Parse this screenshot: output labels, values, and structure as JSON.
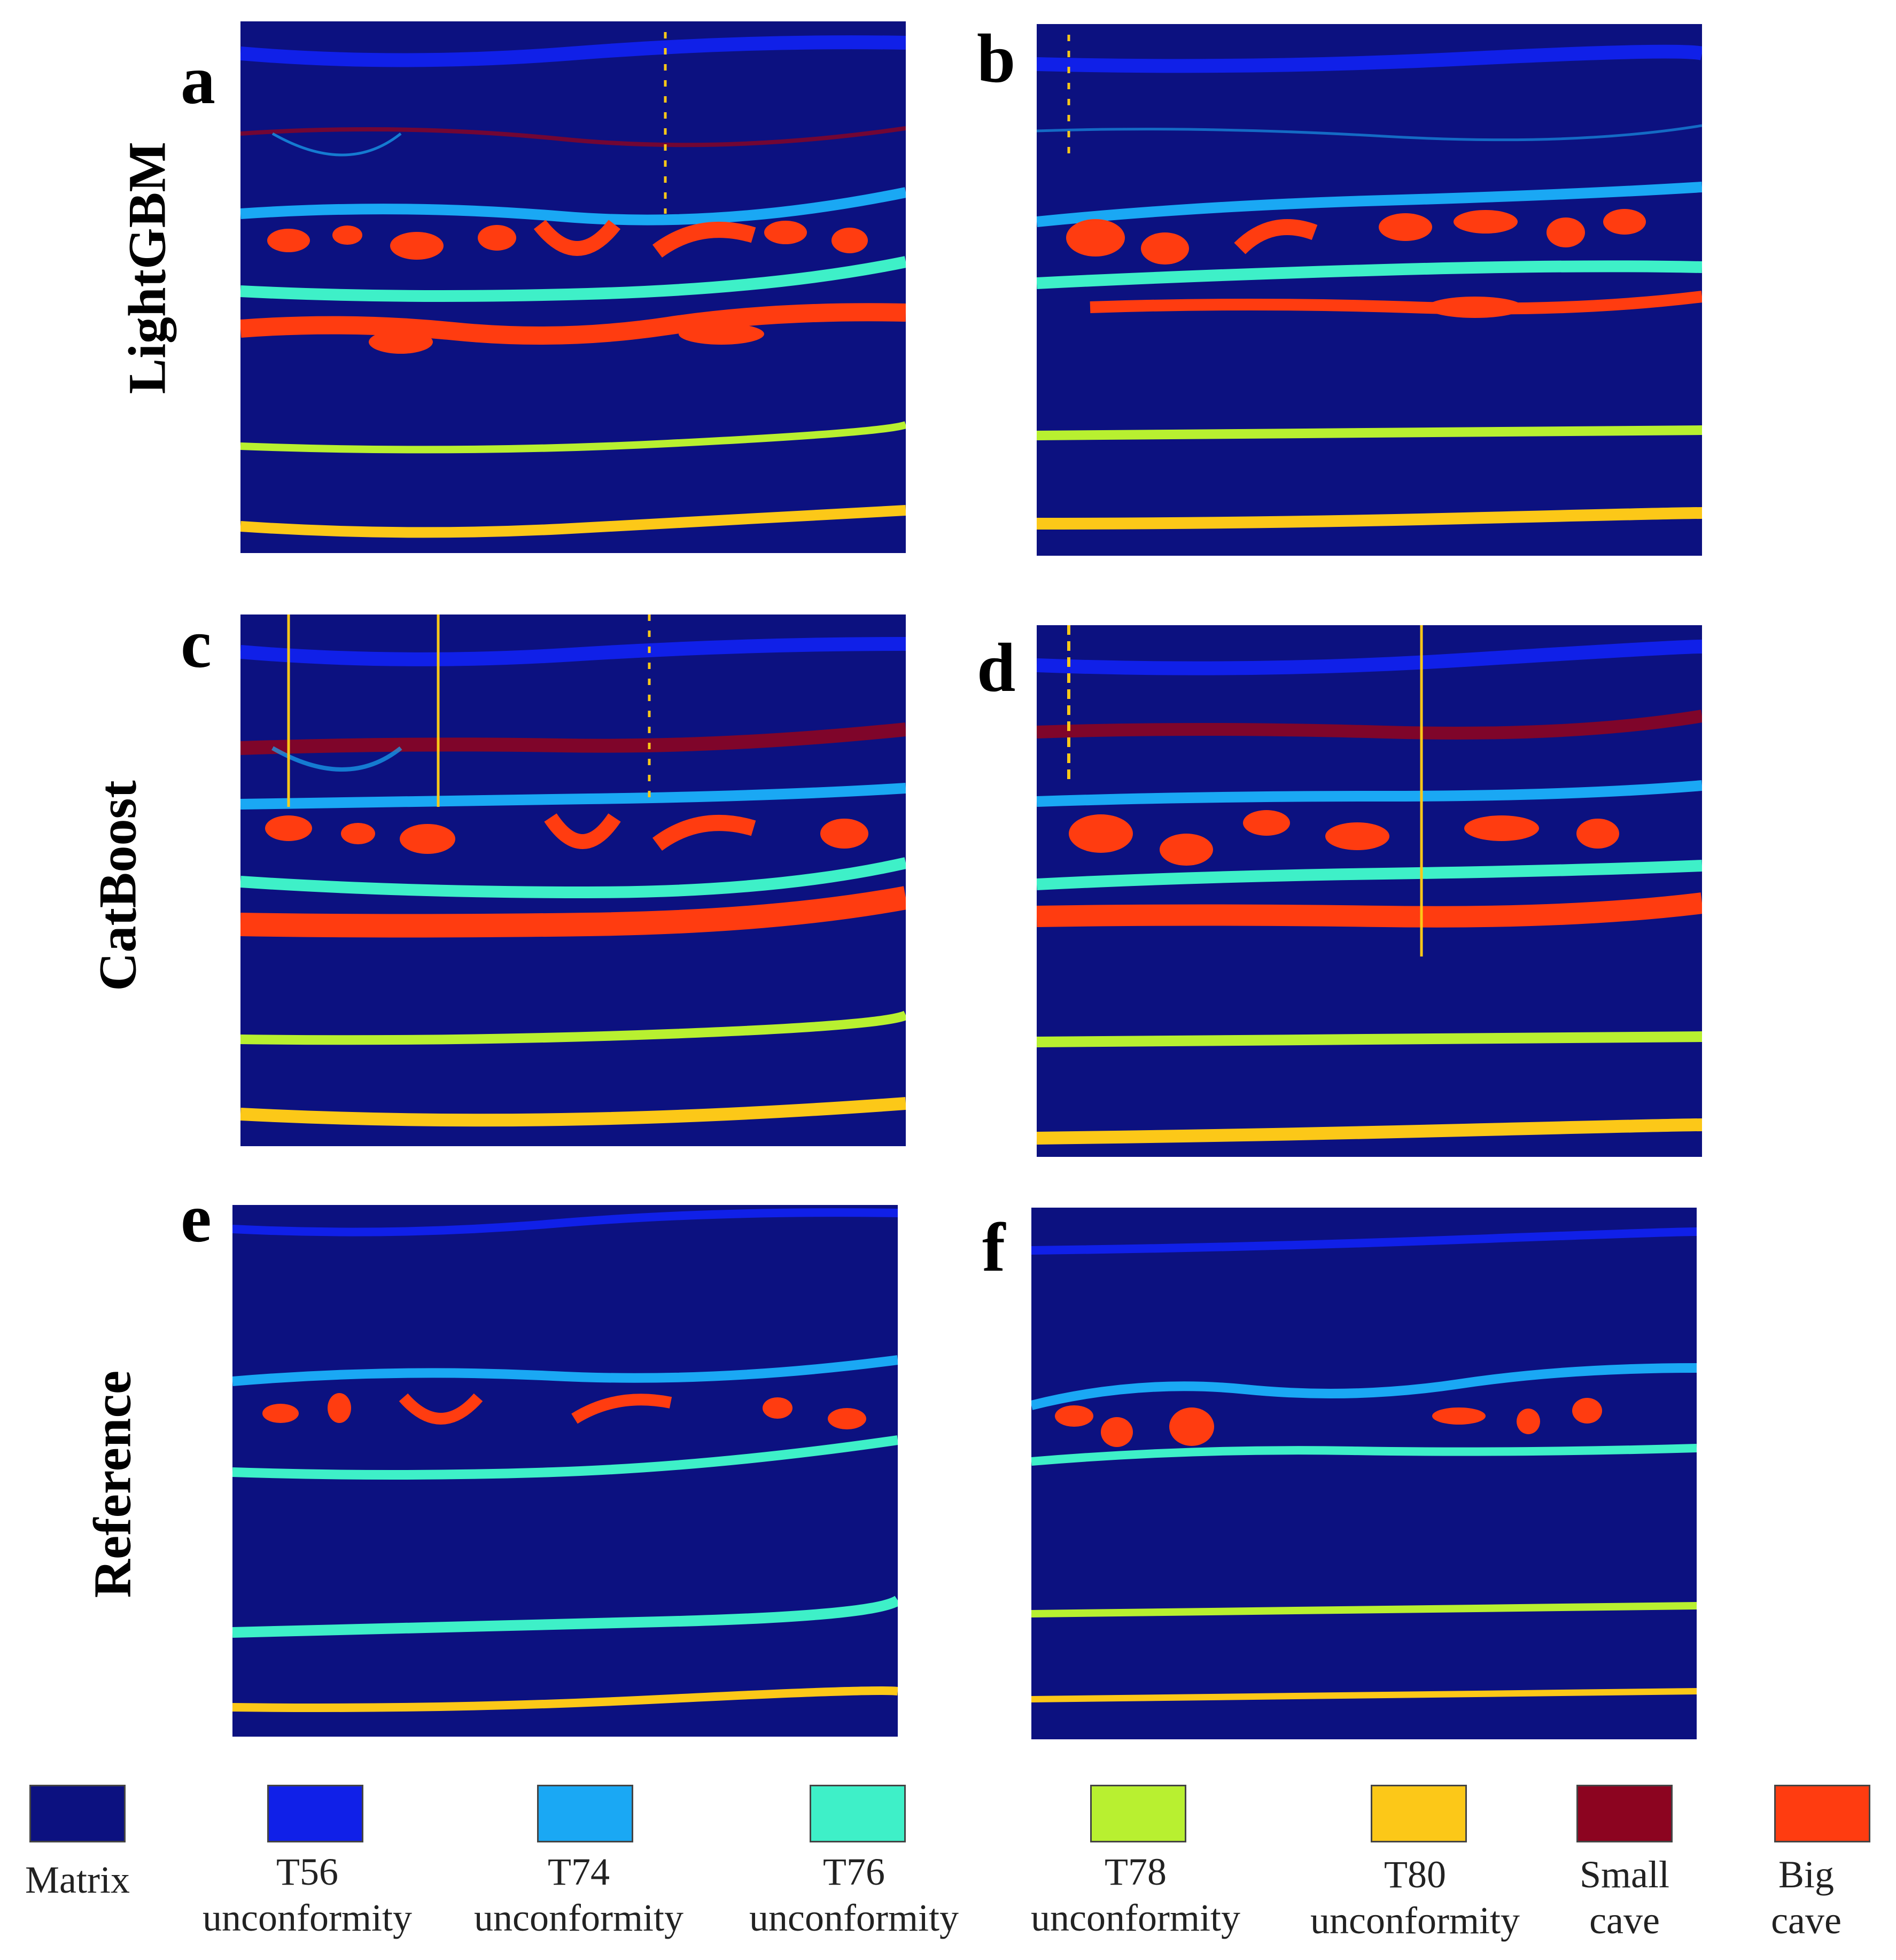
{
  "rows": [
    {
      "label": "LightGBM"
    },
    {
      "label": "CatBoost"
    },
    {
      "label": "Reference"
    }
  ],
  "panels": [
    {
      "letter": "a"
    },
    {
      "letter": "b"
    },
    {
      "letter": "c"
    },
    {
      "letter": "d"
    },
    {
      "letter": "e"
    },
    {
      "letter": "f"
    }
  ],
  "legend": [
    {
      "color": "#0c1180",
      "line1": "Matrix",
      "line2": ""
    },
    {
      "color": "#1020e8",
      "line1": "T56",
      "line2": "unconformity"
    },
    {
      "color": "#1aa8f4",
      "line1": "T74",
      "line2": "unconformity"
    },
    {
      "color": "#3ef0c8",
      "line1": "T76",
      "line2": "unconformity"
    },
    {
      "color": "#b8f030",
      "line1": "T78",
      "line2": "unconformity"
    },
    {
      "color": "#fcc818",
      "line1": "T80",
      "line2": "unconformity"
    },
    {
      "color": "#8c0420",
      "line1": "Small",
      "line2": "cave"
    },
    {
      "color": "#ff3c10",
      "line1": "Big",
      "line2": "cave"
    }
  ]
}
